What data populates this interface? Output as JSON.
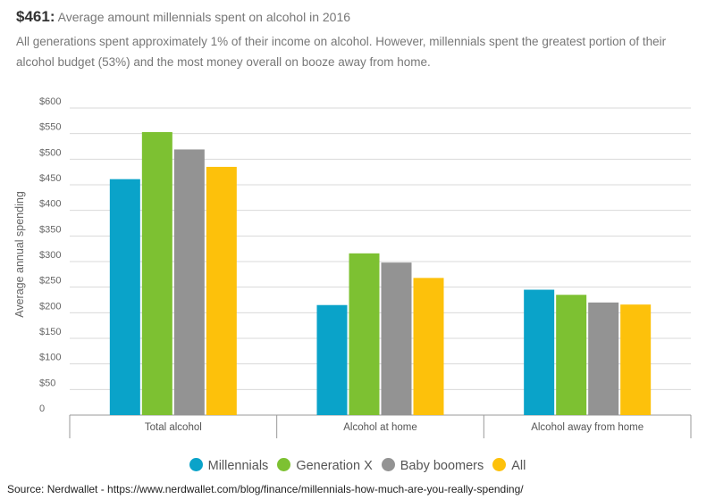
{
  "headline": {
    "amount": "$461:",
    "text": "Average amount millennials spent on alcohol in 2016"
  },
  "subtitle": "All generations spent approximately 1% of their income on alcohol. However, millennials spent the greatest portion of their alcohol budget (53%) and the most money overall on booze away from home.",
  "source": "Source: Nerdwallet - https://www.nerdwallet.com/blog/finance/millennials-how-much-are-you-really-spending/",
  "chart_data": {
    "type": "bar",
    "title": "",
    "xlabel": "",
    "ylabel": "Average annual spending",
    "categories": [
      "Total alcohol",
      "Alcohol at home",
      "Alcohol away from home"
    ],
    "series": [
      {
        "name": "Millennials",
        "color": "#0aa3c9",
        "values": [
          461,
          215,
          245
        ]
      },
      {
        "name": "Generation X",
        "color": "#7dc132",
        "values": [
          553,
          316,
          235
        ]
      },
      {
        "name": "Baby boomers",
        "color": "#939393",
        "values": [
          519,
          298,
          220
        ]
      },
      {
        "name": "All",
        "color": "#fdc10b",
        "values": [
          485,
          268,
          216
        ]
      }
    ],
    "ylim": [
      0,
      600
    ],
    "yticks": [
      "0",
      "$50",
      "$100",
      "$150",
      "$200",
      "$250",
      "$300",
      "$350",
      "$400",
      "$450",
      "$500",
      "$550",
      "$600"
    ],
    "grid": true,
    "legend": "bottom-center"
  }
}
